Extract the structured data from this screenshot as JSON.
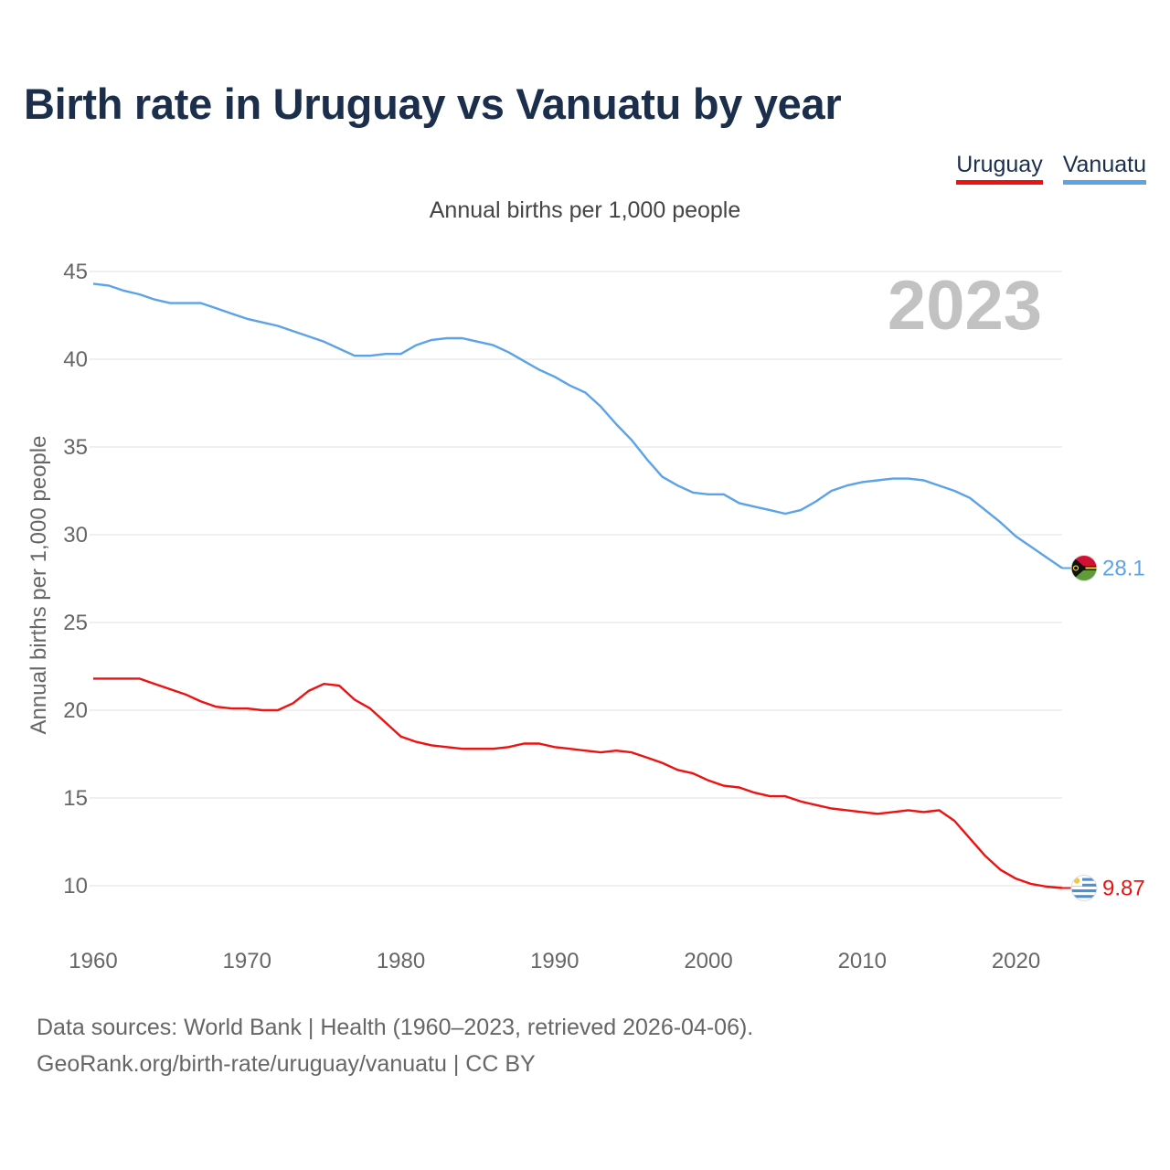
{
  "title": "Birth rate in Uruguay vs Vanuatu by year",
  "subtitle": "Annual births per 1,000 people",
  "legend": [
    {
      "label": "Uruguay",
      "color": "#ee1111"
    },
    {
      "label": "Vanuatu",
      "color": "#5ba3e6"
    }
  ],
  "year_watermark": "2023",
  "footer": {
    "line1": "Data sources: World Bank | Health (1960–2023, retrieved 2026-04-06).",
    "line2": "GeoRank.org/birth-rate/uruguay/vanuatu | CC BY"
  },
  "chart_data": {
    "type": "line",
    "title": "Birth rate in Uruguay vs Vanuatu by year",
    "xlabel": "",
    "ylabel": "Annual births per 1,000 people",
    "xlim": [
      1960,
      2023
    ],
    "ylim": [
      7,
      46
    ],
    "grid": true,
    "legend_position": "top-right",
    "x_ticks": [
      1960,
      1970,
      1980,
      1990,
      2000,
      2010,
      2020
    ],
    "y_ticks": [
      10,
      15,
      20,
      25,
      30,
      35,
      40,
      45
    ],
    "x": [
      1960,
      1961,
      1962,
      1963,
      1964,
      1965,
      1966,
      1967,
      1968,
      1969,
      1970,
      1971,
      1972,
      1973,
      1974,
      1975,
      1976,
      1977,
      1978,
      1979,
      1980,
      1981,
      1982,
      1983,
      1984,
      1985,
      1986,
      1987,
      1988,
      1989,
      1990,
      1991,
      1992,
      1993,
      1994,
      1995,
      1996,
      1997,
      1998,
      1999,
      2000,
      2001,
      2002,
      2003,
      2004,
      2005,
      2006,
      2007,
      2008,
      2009,
      2010,
      2011,
      2012,
      2013,
      2014,
      2015,
      2016,
      2017,
      2018,
      2019,
      2020,
      2021,
      2022,
      2023
    ],
    "series": [
      {
        "name": "Uruguay",
        "color": "#ee1111",
        "end_label": "9.87",
        "values": [
          21.8,
          21.8,
          21.8,
          21.8,
          21.5,
          21.2,
          20.9,
          20.5,
          20.2,
          20.1,
          20.1,
          20.0,
          20.0,
          20.4,
          21.1,
          21.5,
          21.4,
          20.6,
          20.1,
          19.3,
          18.5,
          18.2,
          18.0,
          17.9,
          17.8,
          17.8,
          17.8,
          17.9,
          18.1,
          18.1,
          17.9,
          17.8,
          17.7,
          17.6,
          17.7,
          17.6,
          17.3,
          17.0,
          16.6,
          16.4,
          16.0,
          15.7,
          15.6,
          15.3,
          15.1,
          15.1,
          14.8,
          14.6,
          14.4,
          14.3,
          14.2,
          14.1,
          14.2,
          14.3,
          14.2,
          14.3,
          13.7,
          12.7,
          11.7,
          10.9,
          10.4,
          10.1,
          9.95,
          9.87
        ]
      },
      {
        "name": "Vanuatu",
        "color": "#5ba3e6",
        "end_label": "28.1",
        "values": [
          44.3,
          44.2,
          43.9,
          43.7,
          43.4,
          43.2,
          43.2,
          43.2,
          42.9,
          42.6,
          42.3,
          42.1,
          41.9,
          41.6,
          41.3,
          41.0,
          40.6,
          40.2,
          40.2,
          40.3,
          40.3,
          40.8,
          41.1,
          41.2,
          41.2,
          41.0,
          40.8,
          40.4,
          39.9,
          39.4,
          39.0,
          38.5,
          38.1,
          37.3,
          36.3,
          35.4,
          34.3,
          33.3,
          32.8,
          32.4,
          32.3,
          32.3,
          31.8,
          31.6,
          31.4,
          31.2,
          31.4,
          31.9,
          32.5,
          32.8,
          33.0,
          33.1,
          33.2,
          33.2,
          33.1,
          32.8,
          32.5,
          32.1,
          31.4,
          30.7,
          29.9,
          29.3,
          28.7,
          28.1
        ]
      }
    ]
  }
}
